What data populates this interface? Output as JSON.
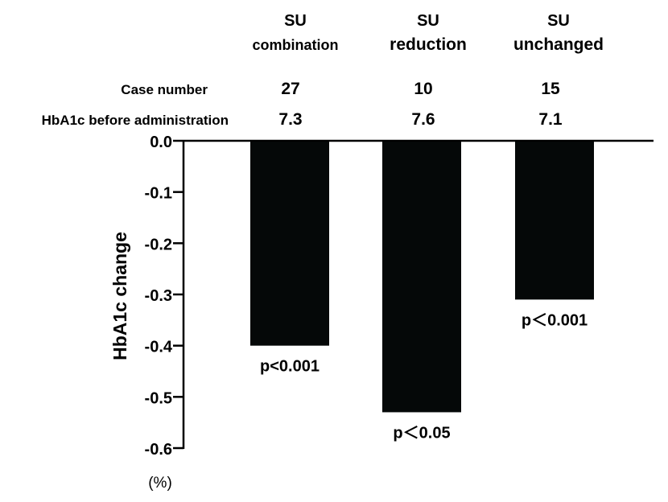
{
  "chart_data": {
    "type": "bar",
    "categories": [
      {
        "line1": "SU",
        "line2": "combination"
      },
      {
        "line1": "SU",
        "line2": "reduction"
      },
      {
        "line1": "SU",
        "line2": "unchanged"
      }
    ],
    "values": [
      -0.4,
      -0.53,
      -0.31
    ],
    "annotations": [
      "p<0.001",
      "p＜0.05",
      "p＜0.001"
    ],
    "table_rows": [
      {
        "label": "Case number",
        "values": [
          "27",
          "10",
          "15"
        ]
      },
      {
        "label": "HbA1c before administration",
        "values": [
          "7.3",
          "7.6",
          "7.1"
        ]
      }
    ],
    "ylabel": "HbA1c change",
    "yunit": "(%)",
    "ylim": [
      -0.6,
      0.0
    ],
    "yticks": [
      "0.0",
      "-0.1",
      "-0.2",
      "-0.3",
      "-0.4",
      "-0.5",
      "-0.6"
    ],
    "ytick_values": [
      0.0,
      -0.1,
      -0.2,
      -0.3,
      -0.4,
      -0.5,
      -0.6
    ],
    "grid": false,
    "bar_color": "#050808"
  }
}
